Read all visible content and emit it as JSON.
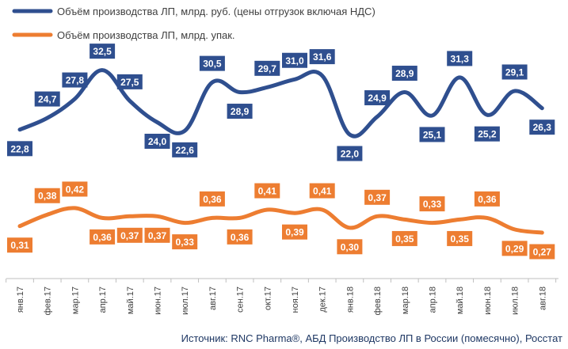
{
  "chart_data": {
    "type": "line",
    "categories": [
      "янв.17",
      "фев.17",
      "мар.17",
      "апр.17",
      "май.17",
      "июн.17",
      "июл.17",
      "авг.17",
      "сен.17",
      "окт.17",
      "ноя.17",
      "дек.17",
      "янв.18",
      "фев.18",
      "мар.18",
      "апр.18",
      "май.18",
      "июн.18",
      "июл.18",
      "авг.18"
    ],
    "series": [
      {
        "name": "Объём производства ЛП, млрд. руб. (цены отгрузок включая НДС)",
        "color": "#2f4f8f",
        "labels": [
          "22,8",
          "24,7",
          "27,8",
          "32,5",
          "27,5",
          "24,0",
          "22,6",
          "30,5",
          "28,9",
          "29,7",
          "31,0",
          "31,6",
          "22,0",
          "24,9",
          "28,9",
          "25,1",
          "31,3",
          "25,2",
          "29,1",
          "26,3"
        ],
        "values": [
          22.8,
          24.7,
          27.8,
          32.5,
          27.5,
          24.0,
          22.6,
          30.5,
          28.9,
          29.7,
          31.0,
          31.6,
          22.0,
          24.9,
          28.9,
          25.1,
          31.3,
          25.2,
          29.1,
          26.3
        ]
      },
      {
        "name": "Объём производства ЛП, млрд. упак.",
        "color": "#ed7d31",
        "labels": [
          "0,31",
          "0,38",
          "0,42",
          "0,36",
          "0,37",
          "0,37",
          "0,33",
          "0,36",
          "0,36",
          "0,41",
          "0,39",
          "0,41",
          "0,30",
          "0,37",
          "0,35",
          "0,33",
          "0,35",
          "0,36",
          "0,29",
          "0,27"
        ],
        "values": [
          0.31,
          0.38,
          0.42,
          0.36,
          0.37,
          0.37,
          0.33,
          0.36,
          0.36,
          0.41,
          0.39,
          0.41,
          0.3,
          0.37,
          0.35,
          0.33,
          0.35,
          0.36,
          0.29,
          0.27
        ]
      }
    ],
    "legend_position": "top-left",
    "grid": false,
    "source": "Источник: RNC Pharma®, АБД Производство ЛП в России (помесячно), Росстат"
  }
}
